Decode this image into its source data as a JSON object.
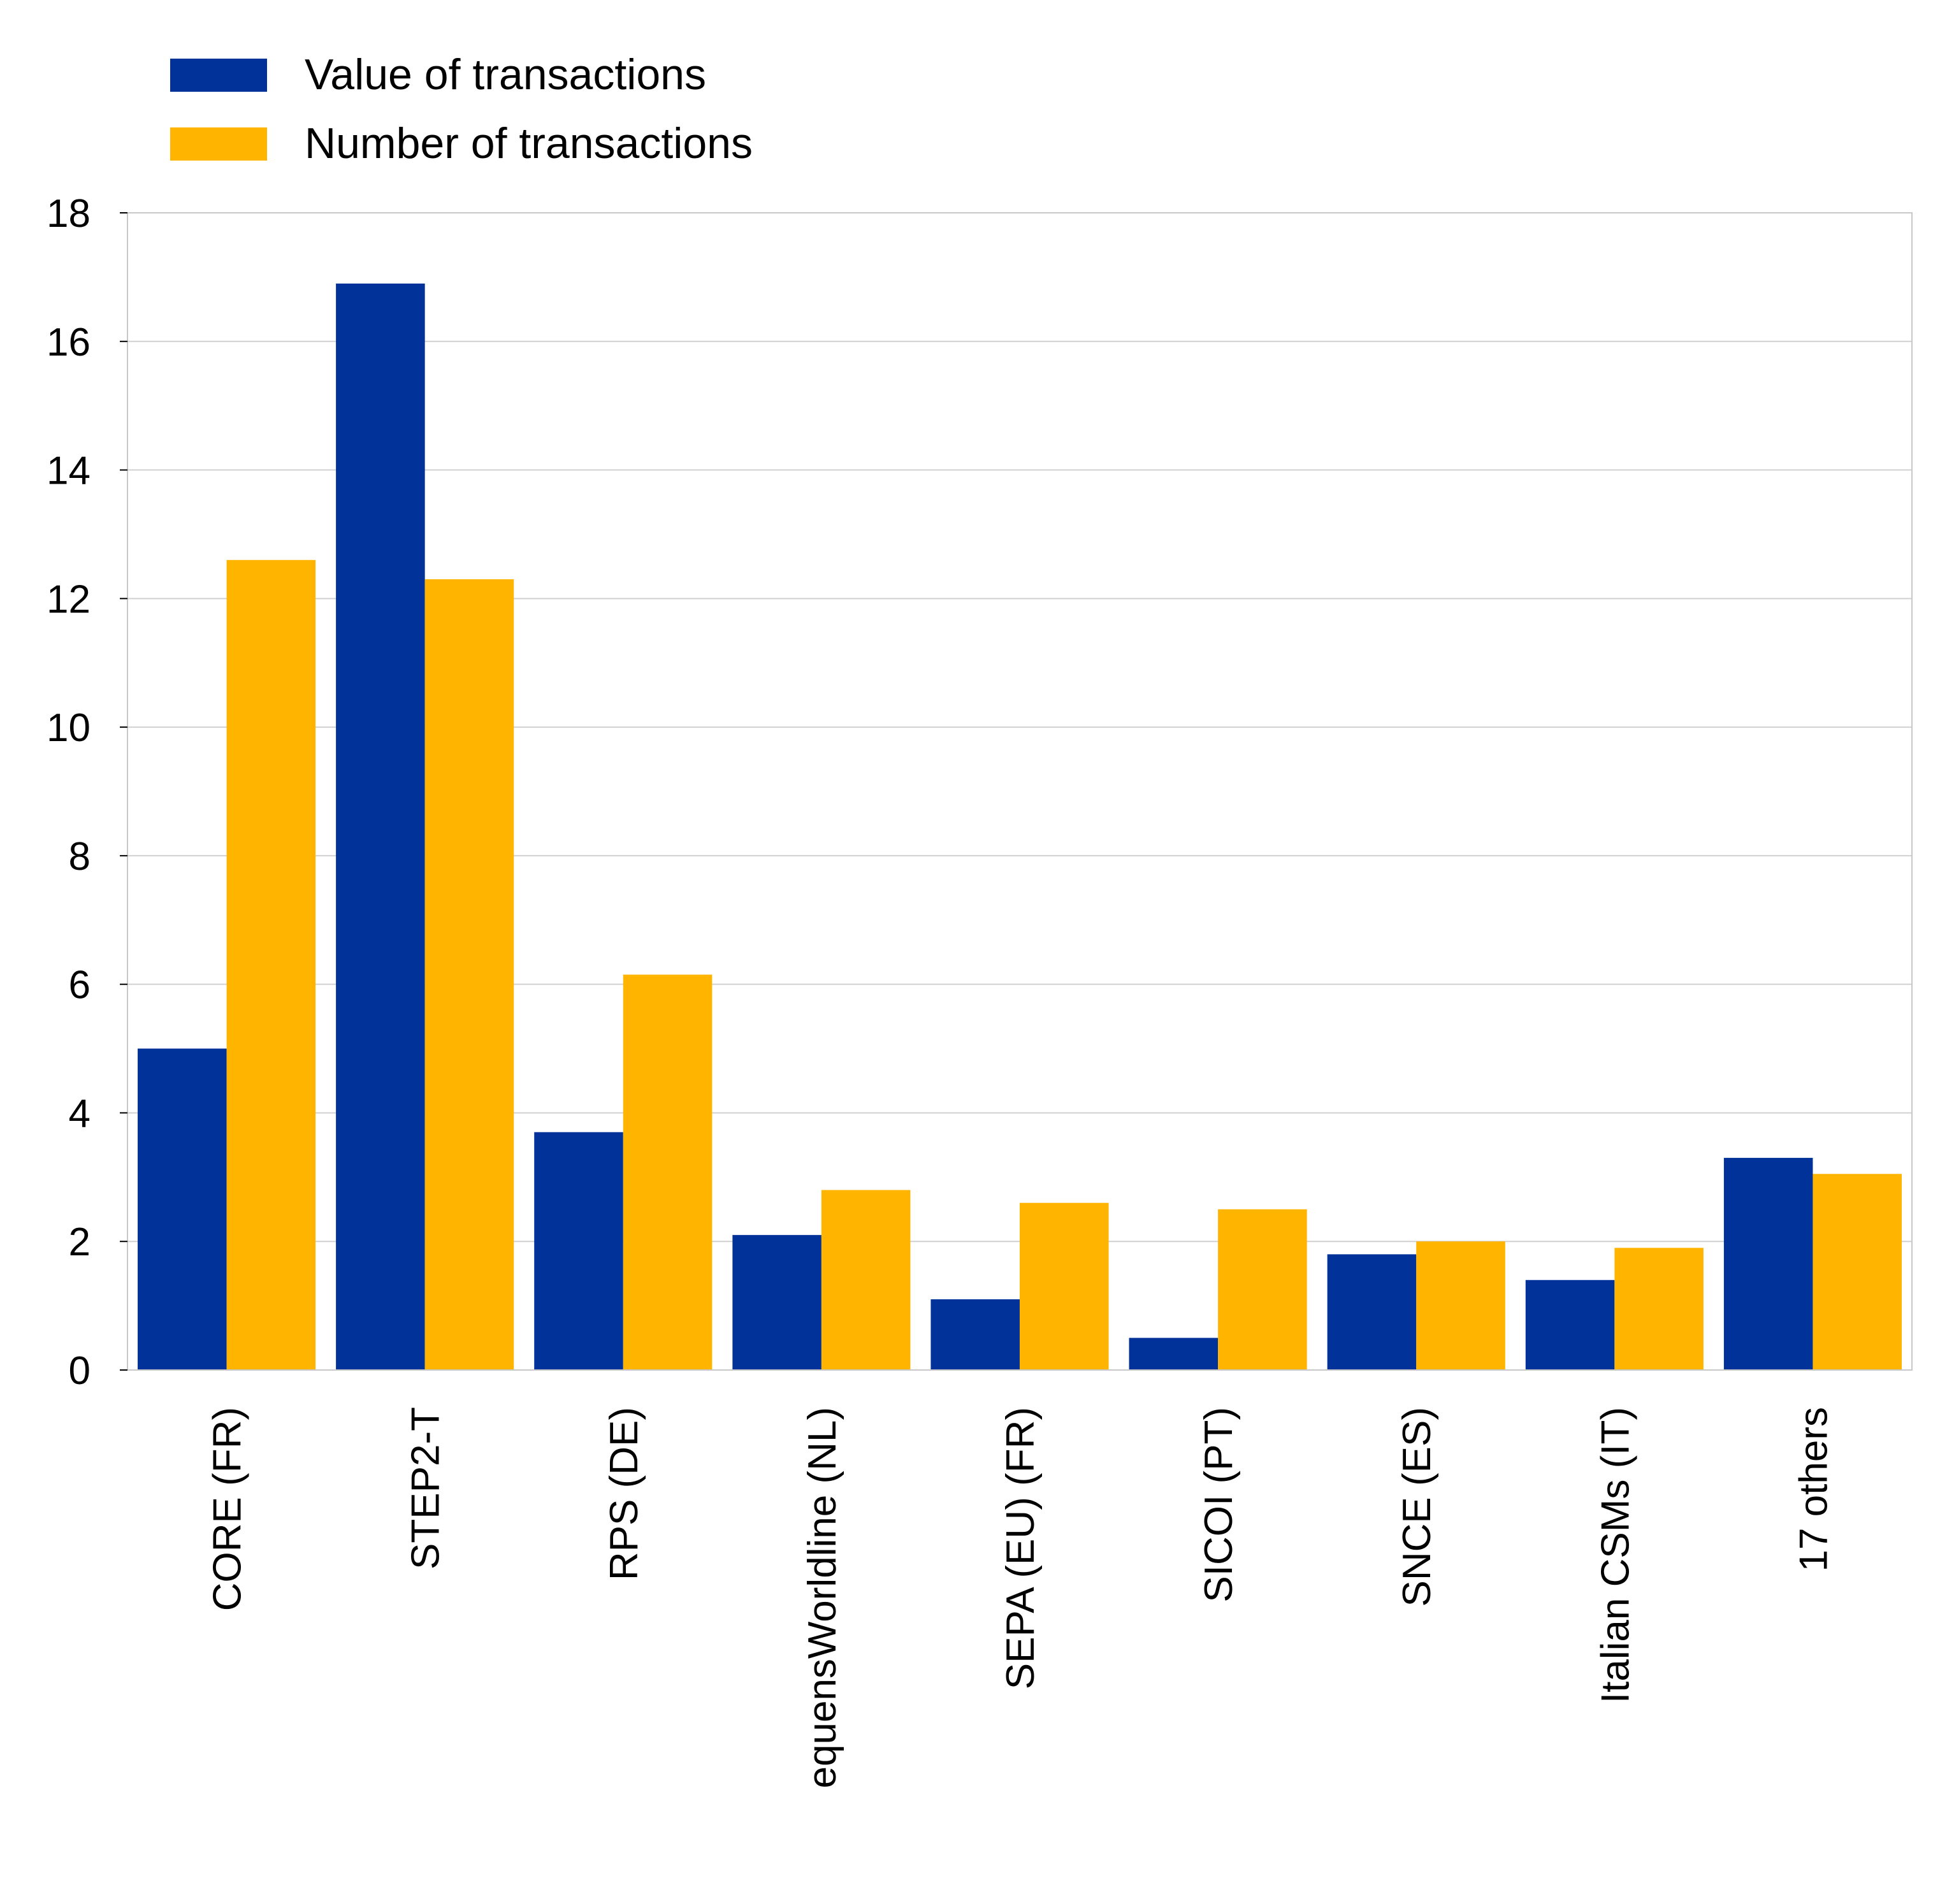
{
  "chart_data": {
    "type": "bar",
    "categories": [
      "CORE (FR)",
      "STEP2-T",
      "RPS (DE)",
      "equensWorldline (NL)",
      "SEPA (EU) (FR)",
      "SICOI (PT)",
      "SNCE (ES)",
      "Italian CSMs (IT)",
      "17 others"
    ],
    "series": [
      {
        "name": "Value of transactions",
        "color": "#003299",
        "values": [
          5.0,
          16.9,
          3.7,
          2.1,
          1.1,
          0.5,
          1.8,
          1.4,
          3.3
        ]
      },
      {
        "name": "Number of transactions",
        "color": "#FFB400",
        "values": [
          12.6,
          12.3,
          6.15,
          2.8,
          2.6,
          2.5,
          2.0,
          1.9,
          3.05
        ]
      }
    ],
    "ylim": [
      0,
      18
    ],
    "yticks": [
      0,
      2,
      4,
      6,
      8,
      10,
      12,
      14,
      16,
      18
    ],
    "grid": true,
    "legend": "top-left",
    "title": "",
    "xlabel": "",
    "ylabel": ""
  }
}
